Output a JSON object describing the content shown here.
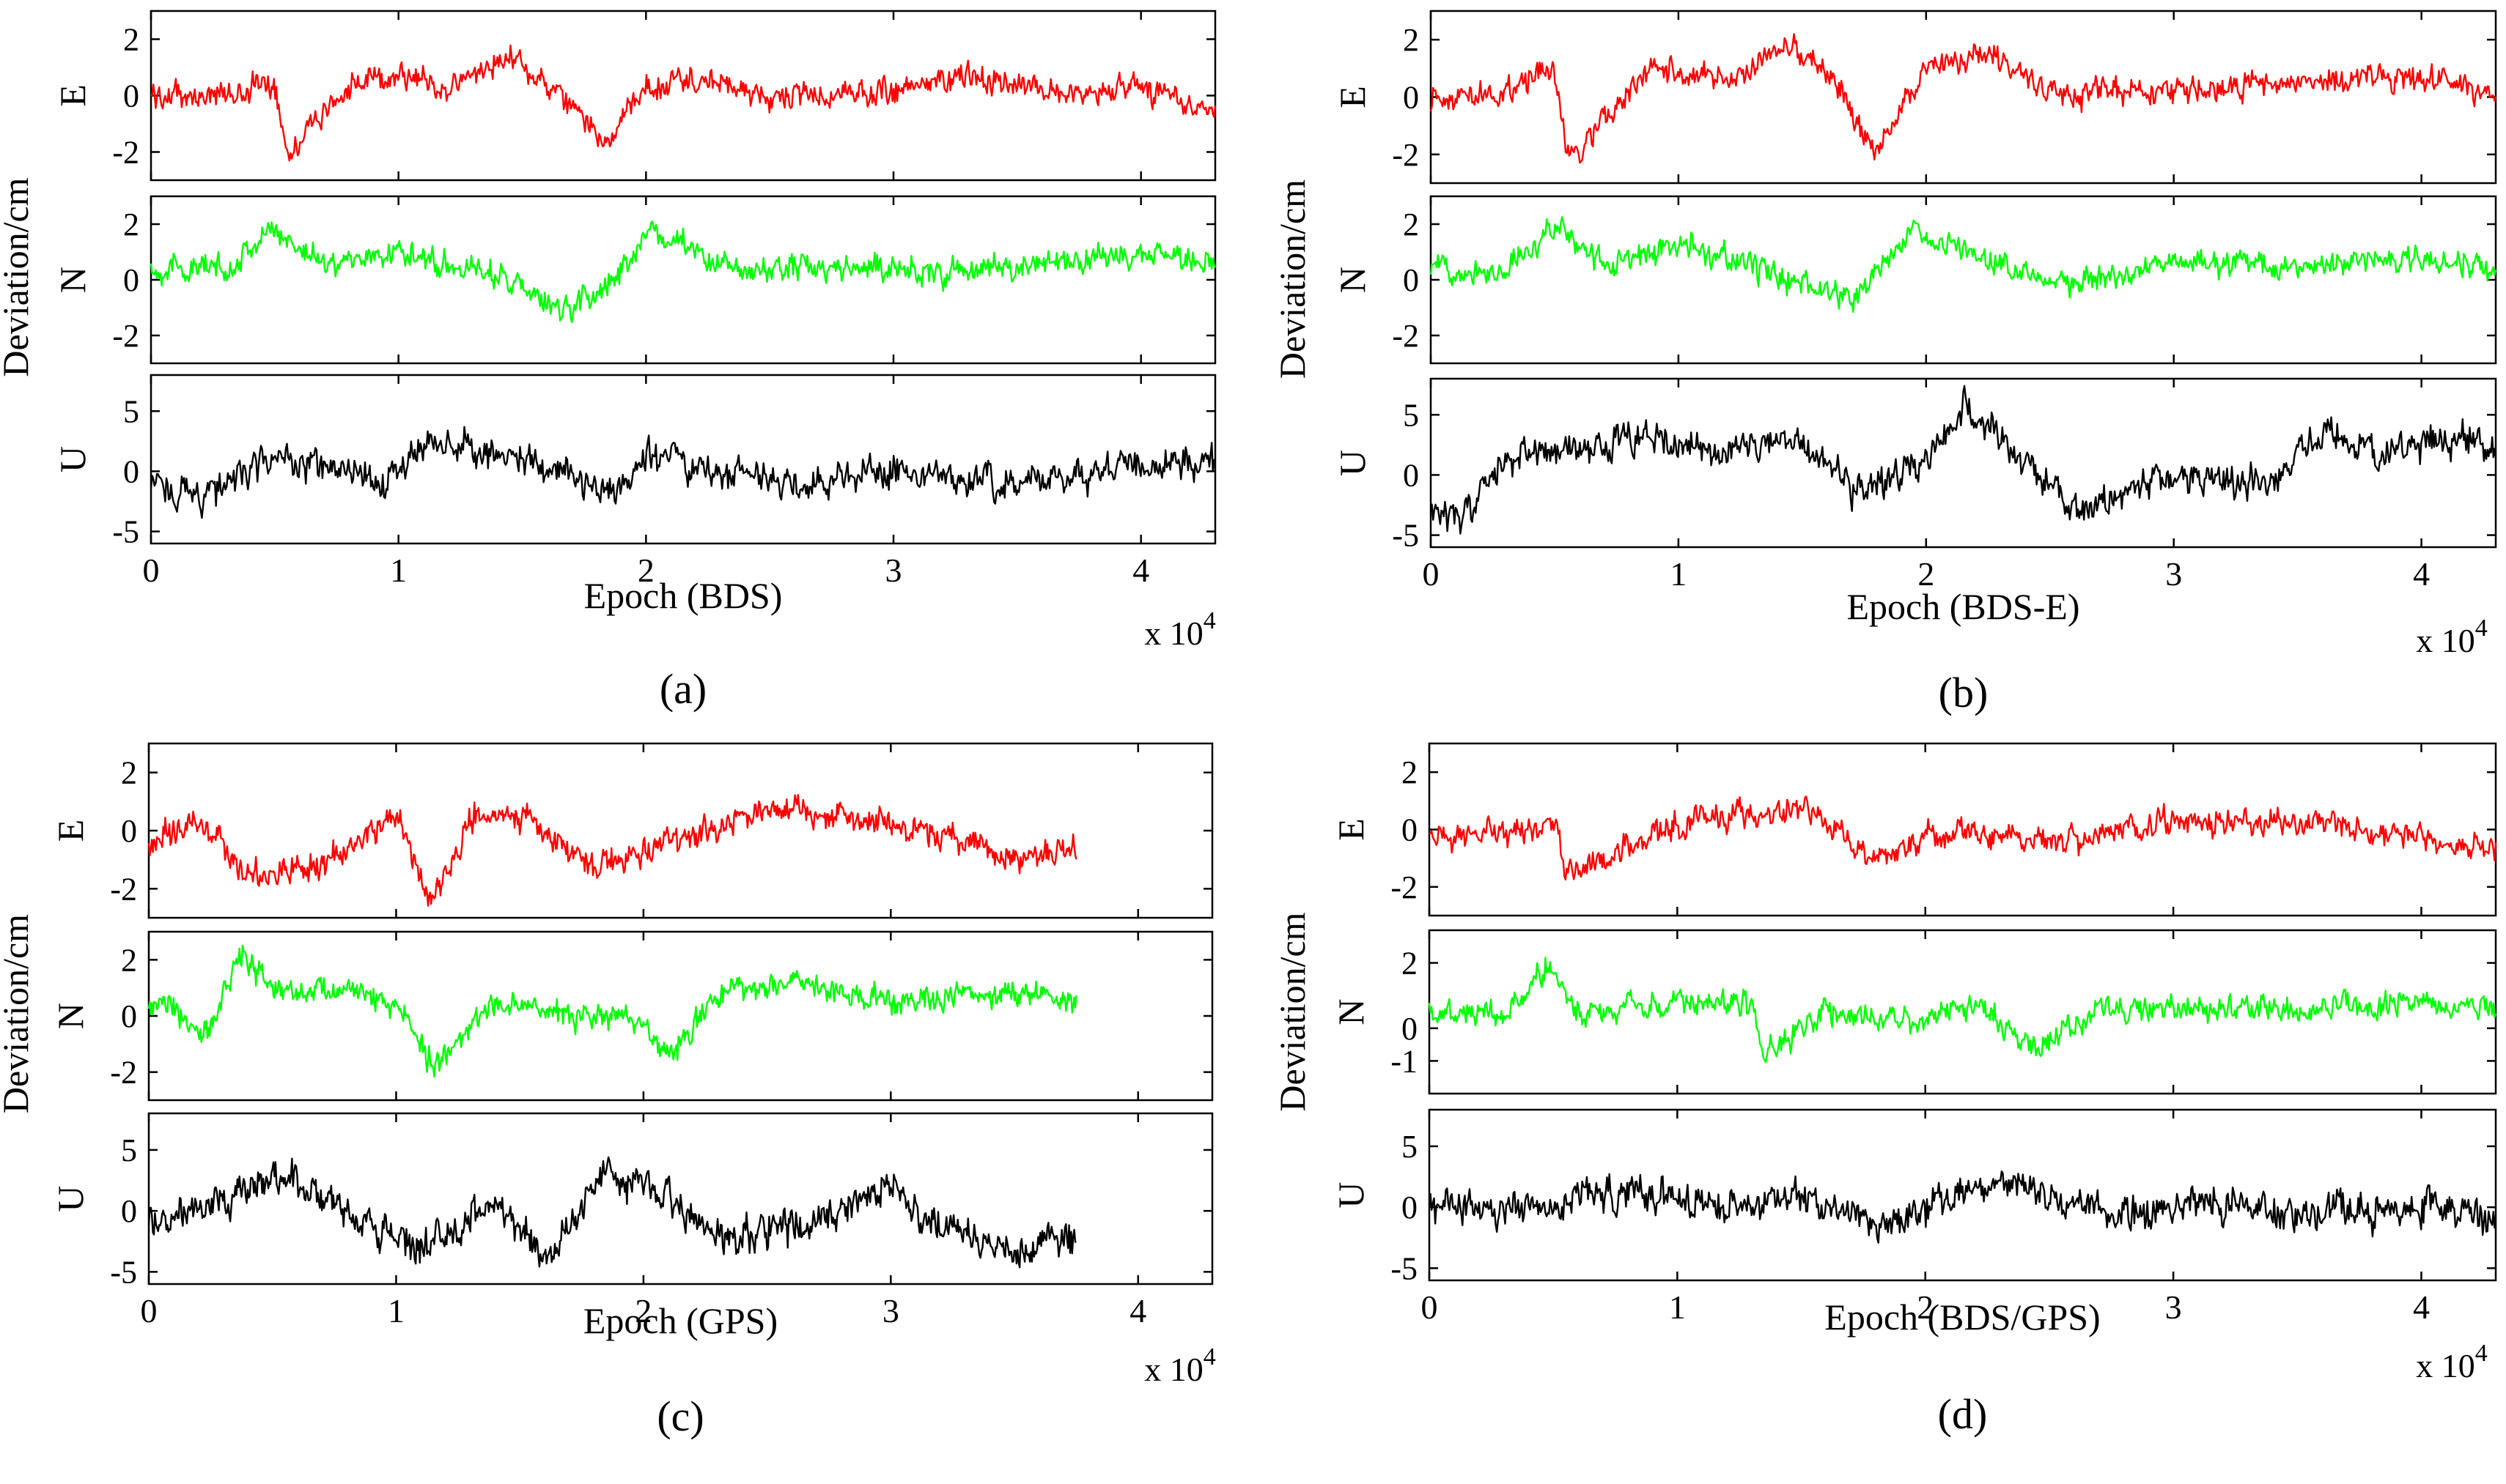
{
  "figure": {
    "panel_labels": [
      "(a)",
      "(b)",
      "(c)",
      "(d)"
    ],
    "colors": {
      "E": "#ff0000",
      "N": "#00ff00",
      "U": "#000000",
      "axes": "#000000"
    }
  },
  "chart_data": [
    {
      "type": "line",
      "panel": "a",
      "label": "(a)",
      "ylabel": "Deviation/cm",
      "xlabel": "Epoch (BDS)",
      "x_multiplier": "x 10",
      "x_exponent": "4",
      "xlim": [
        0,
        4.3
      ],
      "xticks": [
        "0",
        "1",
        "2",
        "3",
        "4"
      ],
      "data_end": 4.3,
      "subplots": [
        {
          "component": "E",
          "ylabel": "E",
          "ylim": [
            -3,
            3
          ],
          "yticks": [
            "-2",
            "0",
            "2"
          ],
          "color": "#ff0000",
          "x": [
            0,
            0.3,
            0.5,
            0.55,
            0.8,
            1.0,
            1.2,
            1.45,
            1.6,
            1.85,
            2.0,
            2.2,
            2.5,
            3.0,
            3.3,
            3.6,
            4.0,
            4.3
          ],
          "y": [
            0,
            0,
            0.5,
            -2.0,
            0.3,
            0.8,
            0.2,
            1.5,
            0.3,
            -1.6,
            0.3,
            0.6,
            -0.1,
            0.1,
            0.8,
            0.2,
            0.2,
            -0.5
          ]
        },
        {
          "component": "N",
          "ylabel": "N",
          "ylim": [
            -3,
            3
          ],
          "yticks": [
            "-2",
            "0",
            "2"
          ],
          "color": "#00ff00",
          "x": [
            0,
            0.3,
            0.5,
            0.7,
            1.0,
            1.4,
            1.65,
            1.9,
            2.0,
            2.2,
            2.4,
            2.6,
            3.0,
            3.2,
            3.6,
            4.0,
            4.3
          ],
          "y": [
            0.4,
            0.4,
            1.8,
            0.6,
            1.0,
            0.2,
            -1.2,
            0.2,
            1.8,
            1.0,
            0.2,
            0.5,
            0.4,
            0.2,
            0.6,
            0.9,
            0.6
          ]
        },
        {
          "component": "U",
          "ylabel": "U",
          "ylim": [
            -6,
            8
          ],
          "yticks": [
            "-5",
            "0",
            "5"
          ],
          "color": "#000000",
          "x": [
            0,
            0.2,
            0.5,
            0.95,
            1.1,
            1.3,
            1.6,
            1.85,
            2.0,
            2.2,
            2.6,
            3.0,
            3.5,
            4.0,
            4.3
          ],
          "y": [
            -1,
            -2,
            1,
            -1,
            2.5,
            2.0,
            0.5,
            -2,
            1.5,
            0.5,
            -1,
            0,
            -1,
            0.5,
            1
          ]
        }
      ]
    },
    {
      "type": "line",
      "panel": "b",
      "label": "(b)",
      "ylabel": "Deviation/cm",
      "xlabel": "Epoch (BDS-E)",
      "x_multiplier": "x 10",
      "x_exponent": "4",
      "xlim": [
        0,
        4.3
      ],
      "xticks": [
        "0",
        "1",
        "2",
        "3",
        "4"
      ],
      "data_end": 4.3,
      "subplots": [
        {
          "component": "E",
          "ylabel": "E",
          "ylim": [
            -3,
            3
          ],
          "yticks": [
            "-2",
            "0",
            "2"
          ],
          "color": "#ff0000",
          "x": [
            0,
            0.3,
            0.5,
            0.55,
            0.9,
            1.2,
            1.45,
            1.6,
            1.8,
            2.0,
            2.2,
            2.5,
            3.0,
            3.5,
            4.0,
            4.3
          ],
          "y": [
            0,
            0.2,
            1.0,
            -2.2,
            1.0,
            0.5,
            1.8,
            1.0,
            -2.0,
            1.0,
            1.5,
            0.2,
            0.2,
            0.5,
            0.7,
            0.2
          ]
        },
        {
          "component": "N",
          "ylabel": "N",
          "ylim": [
            -3,
            3
          ],
          "yticks": [
            "-2",
            "0",
            "2"
          ],
          "color": "#00ff00",
          "x": [
            0,
            0.3,
            0.5,
            0.7,
            1.0,
            1.3,
            1.7,
            1.95,
            2.1,
            2.3,
            2.5,
            2.6,
            3.0,
            3.5,
            4.0,
            4.3
          ],
          "y": [
            0.5,
            0.3,
            2.0,
            0.5,
            1.2,
            0.5,
            -0.8,
            1.8,
            1.2,
            0.6,
            0.2,
            -0.2,
            0.6,
            0.5,
            0.8,
            0.3
          ]
        },
        {
          "component": "U",
          "ylabel": "U",
          "ylim": [
            -6,
            8
          ],
          "yticks": [
            "-5",
            "0",
            "5"
          ],
          "color": "#000000",
          "x": [
            0,
            0.1,
            0.3,
            0.5,
            0.9,
            1.2,
            1.5,
            1.7,
            2.0,
            2.15,
            2.3,
            2.6,
            3.0,
            3.4,
            3.6,
            3.8,
            4.1,
            4.3
          ],
          "y": [
            -2,
            -4,
            1,
            2,
            3,
            2,
            2.5,
            -1,
            1,
            6,
            3,
            -3,
            0,
            -1,
            4,
            2,
            3,
            2.5
          ]
        }
      ]
    },
    {
      "type": "line",
      "panel": "c",
      "label": "(c)",
      "ylabel": "Deviation/cm",
      "xlabel": "Epoch (GPS)",
      "x_multiplier": "x 10",
      "x_exponent": "4",
      "xlim": [
        0,
        4.3
      ],
      "xticks": [
        "0",
        "1",
        "2",
        "3",
        "4"
      ],
      "data_end": 3.75,
      "subplots": [
        {
          "component": "E",
          "ylabel": "E",
          "ylim": [
            -3,
            3
          ],
          "yticks": [
            "-2",
            "0",
            "2"
          ],
          "color": "#ff0000",
          "x": [
            0,
            0.2,
            0.4,
            0.7,
            1.0,
            1.15,
            1.3,
            1.5,
            1.8,
            2.1,
            2.5,
            2.8,
            3.0,
            3.3,
            3.5,
            3.75
          ],
          "y": [
            -0.5,
            0.3,
            -1.5,
            -1.2,
            0.5,
            -2.5,
            0.5,
            0.5,
            -1.2,
            -0.5,
            0.8,
            0.6,
            0.2,
            -0.5,
            -1.0,
            -0.5
          ]
        },
        {
          "component": "N",
          "ylabel": "N",
          "ylim": [
            -3,
            3
          ],
          "yticks": [
            "-2",
            "0",
            "2"
          ],
          "color": "#00ff00",
          "x": [
            0,
            0.25,
            0.37,
            0.5,
            0.8,
            1.0,
            1.15,
            1.4,
            1.6,
            2.0,
            2.1,
            2.3,
            2.6,
            3.0,
            3.5,
            3.75
          ],
          "y": [
            0.5,
            -0.5,
            2.3,
            0.8,
            1.0,
            0.3,
            -1.8,
            0.5,
            0.2,
            -0.2,
            -1.5,
            0.8,
            1.2,
            0.5,
            0.8,
            0.5
          ]
        },
        {
          "component": "U",
          "ylabel": "U",
          "ylim": [
            -6,
            8
          ],
          "yticks": [
            "-5",
            "0",
            "5"
          ],
          "color": "#000000",
          "x": [
            0,
            0.3,
            0.55,
            0.9,
            1.1,
            1.4,
            1.6,
            1.85,
            2.05,
            2.3,
            2.7,
            3.0,
            3.2,
            3.5,
            3.75
          ],
          "y": [
            -1,
            1,
            3,
            -1,
            -3,
            1,
            -4,
            3,
            2,
            -2,
            -1,
            2,
            -1,
            -4,
            -2
          ]
        }
      ]
    },
    {
      "type": "line",
      "panel": "d",
      "label": "(d)",
      "ylabel": "Deviation/cm",
      "xlabel": "Epoch (BDS/GPS)",
      "x_multiplier": "x 10",
      "x_exponent": "4",
      "xlim": [
        0,
        4.3
      ],
      "xticks": [
        "0",
        "1",
        "2",
        "3",
        "4"
      ],
      "data_end": 4.3,
      "subplots": [
        {
          "component": "E",
          "ylabel": "E",
          "ylim": [
            -3,
            3
          ],
          "yticks": [
            "-2",
            "0",
            "2"
          ],
          "color": "#ff0000",
          "x": [
            0,
            0.3,
            0.5,
            0.55,
            1.0,
            1.5,
            1.8,
            2.0,
            2.2,
            2.5,
            3.0,
            3.5,
            4.0,
            4.3
          ],
          "y": [
            -0.3,
            -0.2,
            0.2,
            -1.5,
            0.2,
            0.8,
            -1.0,
            -0.3,
            0,
            -0.5,
            0.3,
            0.3,
            -0.3,
            -0.7
          ]
        },
        {
          "component": "N",
          "ylabel": "N",
          "ylim": [
            -2,
            3
          ],
          "yticks": [
            "-1",
            "0",
            "2"
          ],
          "color": "#00ff00",
          "x": [
            0,
            0.3,
            0.48,
            0.6,
            1.0,
            1.3,
            1.35,
            1.6,
            2.0,
            2.2,
            2.45,
            2.7,
            3.0,
            3.5,
            4.0,
            4.3
          ],
          "y": [
            0.5,
            0.3,
            2.0,
            0.5,
            0.8,
            0.8,
            -0.8,
            0.5,
            0.2,
            0.8,
            -0.6,
            0.5,
            0.6,
            0.5,
            0.8,
            0.5
          ]
        },
        {
          "component": "U",
          "ylabel": "U",
          "ylim": [
            -6,
            8
          ],
          "yticks": [
            "-5",
            "0",
            "5"
          ],
          "color": "#000000",
          "x": [
            0,
            0.3,
            0.6,
            0.9,
            1.2,
            1.5,
            1.8,
            2.1,
            2.3,
            2.5,
            2.8,
            3.1,
            3.5,
            4.0,
            4.3
          ],
          "y": [
            0,
            -0.5,
            1,
            1.5,
            0,
            1,
            -1.5,
            0.5,
            2.2,
            0.5,
            -0.5,
            0.5,
            -0.5,
            0,
            -1
          ]
        }
      ]
    }
  ]
}
